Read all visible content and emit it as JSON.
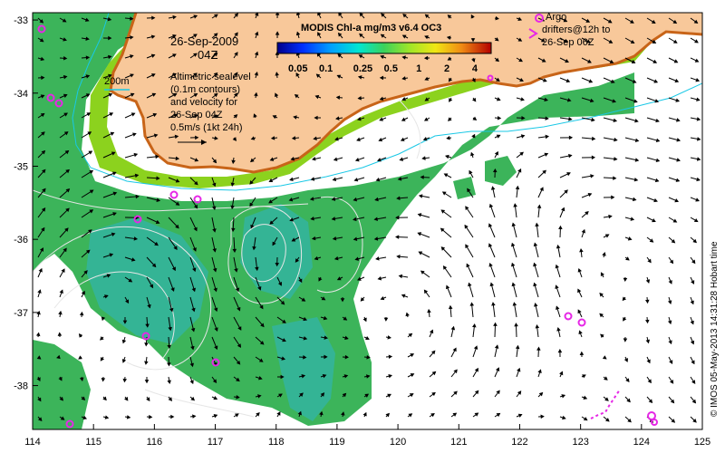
{
  "map": {
    "date_line1": "26-Sep-2009",
    "date_line2": "04Z",
    "colorbar_title": "MODIS Chl-a mg/m3 v6.4 OC3",
    "colorbar_ticks": [
      "0.05",
      "0.1",
      "0.25",
      "0.5",
      "1",
      "2",
      "4"
    ],
    "legend_200m": "200m",
    "altimetry_note": [
      "Altimetric sealevel",
      "(0.1m contours)",
      "and velocity for",
      "26-Sep 04Z",
      "0.5m/s (1kt 24h)"
    ],
    "argo_note": [
      "Argo",
      "drifters@12h to",
      "26-Sep 06Z"
    ],
    "credit": "© IMOS 05-May-2013 14:31:28 Hobart time",
    "lon_ticks": [
      "114",
      "115",
      "116",
      "117",
      "118",
      "119",
      "120",
      "121",
      "122",
      "123",
      "124",
      "125"
    ],
    "lat_ticks": [
      "-33",
      "-34",
      "-35",
      "-36",
      "-37",
      "-38"
    ],
    "lon_range": [
      114,
      125
    ],
    "lat_range": [
      -38.6,
      -32.9
    ],
    "colors": {
      "land": "#f8c89a",
      "coast_orange": "#c86418",
      "chl_high": "#8cd21e",
      "chl_mid": "#3cb45a",
      "chl_low": "#32b4a0",
      "contour": "#e6e6e6",
      "bathy_200m": "#19c8e6",
      "argo": "#e628e6"
    }
  }
}
